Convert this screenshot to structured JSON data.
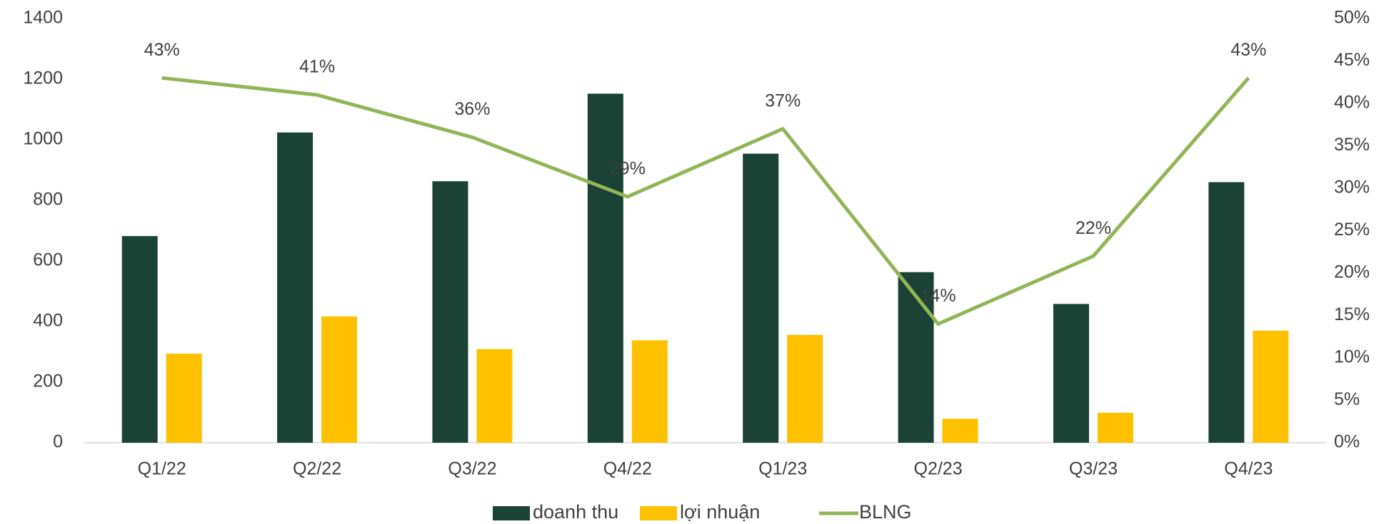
{
  "chart_data": {
    "type": "bar",
    "categories": [
      "Q1/22",
      "Q2/22",
      "Q3/22",
      "Q4/22",
      "Q1/23",
      "Q2/23",
      "Q3/23",
      "Q4/23"
    ],
    "series": [
      {
        "name": "doanh thu",
        "color": "#1a4335",
        "values": [
          682,
          1024,
          863,
          1152,
          954,
          563,
          458,
          860
        ]
      },
      {
        "name": "lợi nhuận",
        "color": "#ffc000",
        "values": [
          294,
          417,
          309,
          338,
          356,
          79,
          99,
          370
        ]
      },
      {
        "name": "BLNG",
        "color": "#92b557",
        "axis": "y2",
        "type": "line",
        "values": [
          43,
          41,
          36,
          29,
          37,
          14,
          22,
          43
        ],
        "value_labels": [
          "43%",
          "41%",
          "36%",
          "29%",
          "37%",
          "14%",
          "22%",
          "43%"
        ]
      }
    ],
    "ylim": [
      0,
      1400
    ],
    "yticks": [
      0,
      200,
      400,
      600,
      800,
      1000,
      1200,
      1400
    ],
    "y2lim": [
      0,
      50
    ],
    "y2ticks": [
      {
        "value": 0,
        "label": "0%"
      },
      {
        "value": 5,
        "label": "5%"
      },
      {
        "value": 10,
        "label": "10%"
      },
      {
        "value": 15,
        "label": "15%"
      },
      {
        "value": 20,
        "label": "20%"
      },
      {
        "value": 25,
        "label": "25%"
      },
      {
        "value": 30,
        "label": "30%"
      },
      {
        "value": 35,
        "label": "35%"
      },
      {
        "value": 40,
        "label": "40%"
      },
      {
        "value": 45,
        "label": "45%"
      },
      {
        "value": 50,
        "label": "50%"
      }
    ],
    "grid": false,
    "legend": "bottom"
  }
}
